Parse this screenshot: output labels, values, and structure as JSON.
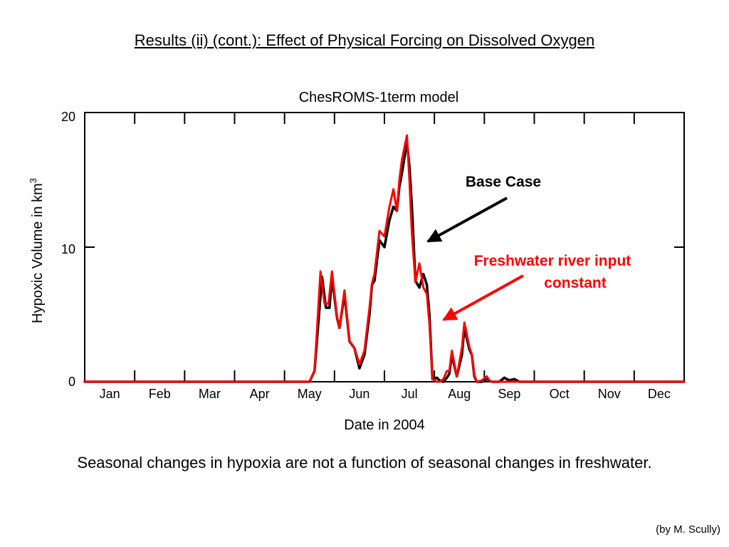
{
  "slide": {
    "title": "Results (ii) (cont.): Effect of Physical Forcing on Dissolved Oxygen",
    "caption": "Seasonal changes in hypoxia are not a function of seasonal changes in freshwater.",
    "credit": "(by M. Scully)"
  },
  "chart_data": {
    "type": "line",
    "title": "ChesROMS-1term model",
    "xlabel": "Date in 2004",
    "ylabel": "Hypoxic Volume in km",
    "ylabel_sup": "3",
    "ylim": [
      0,
      20
    ],
    "yticks": [
      "0",
      "10",
      "20"
    ],
    "x_units": "months (0 = Jan 1, 12 = Dec 31)",
    "xlim": [
      0,
      12
    ],
    "xtick_labels": [
      "Jan",
      "Feb",
      "Mar",
      "Apr",
      "May",
      "Jun",
      "Jul",
      "Aug",
      "Sep",
      "Oct",
      "Nov",
      "Dec"
    ],
    "grid": false,
    "series": [
      {
        "name": "Base Case",
        "color": "#000000",
        "x": [
          0,
          4.5,
          4.6,
          4.75,
          4.83,
          4.9,
          4.95,
          5.05,
          5.1,
          5.2,
          5.3,
          5.4,
          5.5,
          5.6,
          5.7,
          5.75,
          5.8,
          5.9,
          6.0,
          6.1,
          6.18,
          6.25,
          6.3,
          6.35,
          6.45,
          6.5,
          6.55,
          6.62,
          6.7,
          6.78,
          6.85,
          6.9,
          6.96,
          7.05,
          7.1,
          7.18,
          7.25,
          7.3,
          7.35,
          7.45,
          7.55,
          7.6,
          7.7,
          7.75,
          7.8,
          7.85,
          7.95,
          8.05,
          8.15,
          8.25,
          8.3,
          8.4,
          8.5,
          8.6,
          8.7,
          8.8,
          8.9,
          9.0,
          9.1,
          9.2,
          12
        ],
        "y": [
          0,
          0,
          0.8,
          7.8,
          5.5,
          5.5,
          7.8,
          4.8,
          4.0,
          6.5,
          3.0,
          2.5,
          1.0,
          2.0,
          5.0,
          7.2,
          7.5,
          10.5,
          10.0,
          12.0,
          13.0,
          12.7,
          14.5,
          15.5,
          17.8,
          16.0,
          13.0,
          7.5,
          7.0,
          8.0,
          7.2,
          5.0,
          0.2,
          0.3,
          0.1,
          0.0,
          0.3,
          0.6,
          2.0,
          0.4,
          2.0,
          4.0,
          2.4,
          2.0,
          0.4,
          0.0,
          0.0,
          0.2,
          0.0,
          0.0,
          0.0,
          0.3,
          0.1,
          0.2,
          0.0,
          0.0,
          0.0,
          0.0,
          0.0,
          0.0,
          0
        ]
      },
      {
        "name": "Freshwater river input constant",
        "color": "#ff0000",
        "x": [
          0,
          4.5,
          4.6,
          4.72,
          4.8,
          4.88,
          4.95,
          5.05,
          5.1,
          5.2,
          5.3,
          5.4,
          5.5,
          5.6,
          5.7,
          5.75,
          5.8,
          5.9,
          6.0,
          6.1,
          6.18,
          6.25,
          6.3,
          6.35,
          6.45,
          6.5,
          6.55,
          6.62,
          6.7,
          6.78,
          6.85,
          6.9,
          6.96,
          7.05,
          7.1,
          7.18,
          7.25,
          7.3,
          7.35,
          7.45,
          7.55,
          7.6,
          7.7,
          7.75,
          7.8,
          7.85,
          7.95,
          8.05,
          8.1,
          8.15,
          8.25,
          8.3,
          8.4,
          8.5,
          8.6,
          8.7,
          8.8,
          8.9,
          9.0,
          9.2,
          12
        ],
        "y": [
          0,
          0,
          0.8,
          8.2,
          5.8,
          5.8,
          8.2,
          4.9,
          4.0,
          6.8,
          3.0,
          2.5,
          1.3,
          2.3,
          5.5,
          7.3,
          8.0,
          11.2,
          10.8,
          13.0,
          14.3,
          12.7,
          15.0,
          16.5,
          18.3,
          15.0,
          11.0,
          7.4,
          8.8,
          7.0,
          6.5,
          4.3,
          0.2,
          0.0,
          0.0,
          0.2,
          0.8,
          0.8,
          2.3,
          0.4,
          2.5,
          4.4,
          2.6,
          2.0,
          0.5,
          0.0,
          0.1,
          0.4,
          0.1,
          0.0,
          0.0,
          0.0,
          0.0,
          0.0,
          0.0,
          0.0,
          0.0,
          0.0,
          0.0,
          0.0,
          0
        ]
      }
    ],
    "annotations": [
      {
        "text": "Base Case",
        "color": "#000000",
        "arrow_to": [
          6.65,
          10.5
        ]
      },
      {
        "text": "Freshwater river input",
        "text_line2": "constant",
        "color": "#ff0000",
        "arrow_to": [
          7.05,
          4.6
        ]
      }
    ]
  }
}
